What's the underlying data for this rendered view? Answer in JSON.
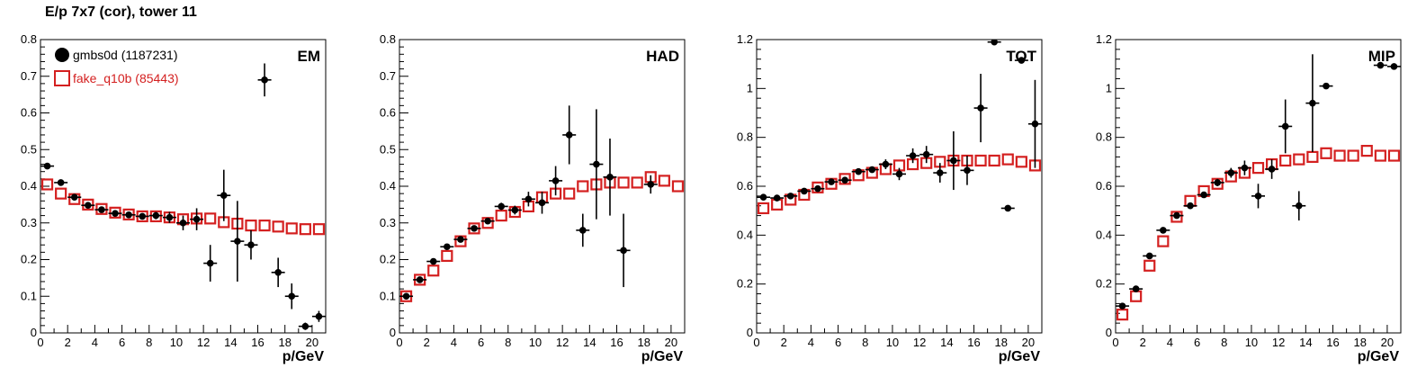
{
  "figure": {
    "title": "E/p 7x7 (cor), tower 11"
  },
  "chart_data": [
    {
      "type": "scatter",
      "panel_label": "EM",
      "xlabel": "p/GeV",
      "ylabel": "",
      "xlim": [
        0,
        21
      ],
      "ylim": [
        0,
        0.8
      ],
      "x_ticks": [
        0,
        2,
        4,
        6,
        8,
        10,
        12,
        14,
        16,
        18,
        20
      ],
      "y_ticks": [
        0,
        0.1,
        0.2,
        0.3,
        0.4,
        0.5,
        0.6,
        0.7,
        0.8
      ],
      "y_tick_labels": [
        "0",
        "0.1",
        "0.2",
        "0.3",
        "0.4",
        "0.5",
        "0.6",
        "0.7",
        "0.8"
      ],
      "legend": {
        "placement": "top-left",
        "entries": [
          {
            "label": "gmbs0d (1187231)",
            "series": 0,
            "color": "#000000"
          },
          {
            "label": "fake_q10b (85443)",
            "series": 1,
            "color": "#d42020"
          }
        ]
      },
      "series": [
        {
          "name": "gmbs0d (1187231)",
          "marker": "filled-circle",
          "color": "#000000",
          "points": [
            {
              "x": 0.5,
              "y": 0.455,
              "err": 0.005
            },
            {
              "x": 1.5,
              "y": 0.41,
              "err": 0.005
            },
            {
              "x": 2.5,
              "y": 0.37,
              "err": 0.005
            },
            {
              "x": 3.5,
              "y": 0.348,
              "err": 0.005
            },
            {
              "x": 4.5,
              "y": 0.336,
              "err": 0.005
            },
            {
              "x": 5.5,
              "y": 0.326,
              "err": 0.006
            },
            {
              "x": 6.5,
              "y": 0.322,
              "err": 0.007
            },
            {
              "x": 7.5,
              "y": 0.318,
              "err": 0.008
            },
            {
              "x": 8.5,
              "y": 0.32,
              "err": 0.01
            },
            {
              "x": 9.5,
              "y": 0.315,
              "err": 0.015
            },
            {
              "x": 10.5,
              "y": 0.3,
              "err": 0.02
            },
            {
              "x": 11.5,
              "y": 0.31,
              "err": 0.03
            },
            {
              "x": 12.5,
              "y": 0.19,
              "err": 0.05
            },
            {
              "x": 13.5,
              "y": 0.375,
              "err": 0.07
            },
            {
              "x": 14.5,
              "y": 0.25,
              "err": 0.11
            },
            {
              "x": 15.5,
              "y": 0.24,
              "err": 0.04
            },
            {
              "x": 16.5,
              "y": 0.69,
              "err": 0.045
            },
            {
              "x": 17.5,
              "y": 0.165,
              "err": 0.04
            },
            {
              "x": 18.5,
              "y": 0.1,
              "err": 0.035
            },
            {
              "x": 19.5,
              "y": 0.018,
              "err": 0.01
            },
            {
              "x": 20.5,
              "y": 0.045,
              "err": 0.015
            }
          ]
        },
        {
          "name": "fake_q10b (85443)",
          "marker": "open-square",
          "color": "#d42020",
          "points": [
            {
              "x": 0.5,
              "y": 0.405
            },
            {
              "x": 1.5,
              "y": 0.38
            },
            {
              "x": 2.5,
              "y": 0.365
            },
            {
              "x": 3.5,
              "y": 0.35
            },
            {
              "x": 4.5,
              "y": 0.338
            },
            {
              "x": 5.5,
              "y": 0.328
            },
            {
              "x": 6.5,
              "y": 0.323
            },
            {
              "x": 7.5,
              "y": 0.318
            },
            {
              "x": 8.5,
              "y": 0.318
            },
            {
              "x": 9.5,
              "y": 0.315
            },
            {
              "x": 10.5,
              "y": 0.31
            },
            {
              "x": 11.5,
              "y": 0.312
            },
            {
              "x": 12.5,
              "y": 0.312
            },
            {
              "x": 13.5,
              "y": 0.302
            },
            {
              "x": 14.5,
              "y": 0.298
            },
            {
              "x": 15.5,
              "y": 0.293
            },
            {
              "x": 16.5,
              "y": 0.293
            },
            {
              "x": 17.5,
              "y": 0.29
            },
            {
              "x": 18.5,
              "y": 0.285
            },
            {
              "x": 19.5,
              "y": 0.283
            },
            {
              "x": 20.5,
              "y": 0.283
            }
          ]
        }
      ]
    },
    {
      "type": "scatter",
      "panel_label": "HAD",
      "xlabel": "p/GeV",
      "ylabel": "",
      "xlim": [
        0,
        21
      ],
      "ylim": [
        0,
        0.8
      ],
      "x_ticks": [
        0,
        2,
        4,
        6,
        8,
        10,
        12,
        14,
        16,
        18,
        20
      ],
      "y_ticks": [
        0,
        0.1,
        0.2,
        0.3,
        0.4,
        0.5,
        0.6,
        0.7,
        0.8
      ],
      "y_tick_labels": [
        "0",
        "0.1",
        "0.2",
        "0.3",
        "0.4",
        "0.5",
        "0.6",
        "0.7",
        "0.8"
      ],
      "series": [
        {
          "name": "gmbs0d (1187231)",
          "marker": "filled-circle",
          "color": "#000000",
          "points": [
            {
              "x": 0.5,
              "y": 0.1,
              "err": 0.005
            },
            {
              "x": 1.5,
              "y": 0.145,
              "err": 0.005
            },
            {
              "x": 2.5,
              "y": 0.195,
              "err": 0.005
            },
            {
              "x": 3.5,
              "y": 0.235,
              "err": 0.005
            },
            {
              "x": 4.5,
              "y": 0.255,
              "err": 0.005
            },
            {
              "x": 5.5,
              "y": 0.285,
              "err": 0.006
            },
            {
              "x": 6.5,
              "y": 0.305,
              "err": 0.008
            },
            {
              "x": 7.5,
              "y": 0.345,
              "err": 0.01
            },
            {
              "x": 8.5,
              "y": 0.335,
              "err": 0.012
            },
            {
              "x": 9.5,
              "y": 0.365,
              "err": 0.02
            },
            {
              "x": 10.5,
              "y": 0.355,
              "err": 0.03
            },
            {
              "x": 11.5,
              "y": 0.415,
              "err": 0.04
            },
            {
              "x": 12.5,
              "y": 0.54,
              "err": 0.08
            },
            {
              "x": 13.5,
              "y": 0.28,
              "err": 0.045
            },
            {
              "x": 14.5,
              "y": 0.46,
              "err": 0.15
            },
            {
              "x": 15.5,
              "y": 0.425,
              "err": 0.105
            },
            {
              "x": 16.5,
              "y": 0.225,
              "err": 0.1
            },
            {
              "x": 18.5,
              "y": 0.405,
              "err": 0.025
            }
          ]
        },
        {
          "name": "fake_q10b (85443)",
          "marker": "open-square",
          "color": "#d42020",
          "points": [
            {
              "x": 0.5,
              "y": 0.1
            },
            {
              "x": 1.5,
              "y": 0.145
            },
            {
              "x": 2.5,
              "y": 0.17
            },
            {
              "x": 3.5,
              "y": 0.21
            },
            {
              "x": 4.5,
              "y": 0.25
            },
            {
              "x": 5.5,
              "y": 0.285
            },
            {
              "x": 6.5,
              "y": 0.3
            },
            {
              "x": 7.5,
              "y": 0.32
            },
            {
              "x": 8.5,
              "y": 0.33
            },
            {
              "x": 9.5,
              "y": 0.345
            },
            {
              "x": 10.5,
              "y": 0.37
            },
            {
              "x": 11.5,
              "y": 0.38
            },
            {
              "x": 12.5,
              "y": 0.38
            },
            {
              "x": 13.5,
              "y": 0.4
            },
            {
              "x": 14.5,
              "y": 0.405
            },
            {
              "x": 15.5,
              "y": 0.41
            },
            {
              "x": 16.5,
              "y": 0.41
            },
            {
              "x": 17.5,
              "y": 0.41
            },
            {
              "x": 18.5,
              "y": 0.425
            },
            {
              "x": 19.5,
              "y": 0.415
            },
            {
              "x": 20.5,
              "y": 0.4
            }
          ]
        }
      ]
    },
    {
      "type": "scatter",
      "panel_label": "TOT",
      "xlabel": "p/GeV",
      "ylabel": "",
      "xlim": [
        0,
        21
      ],
      "ylim": [
        0,
        1.2
      ],
      "x_ticks": [
        0,
        2,
        4,
        6,
        8,
        10,
        12,
        14,
        16,
        18,
        20
      ],
      "y_ticks": [
        0,
        0.2,
        0.4,
        0.6,
        0.8,
        1,
        1.2
      ],
      "y_tick_labels": [
        "0",
        "0.2",
        "0.4",
        "0.6",
        "0.8",
        "1",
        "1.2"
      ],
      "series": [
        {
          "name": "gmbs0d (1187231)",
          "marker": "filled-circle",
          "color": "#000000",
          "points": [
            {
              "x": 0.5,
              "y": 0.555,
              "err": 0.005
            },
            {
              "x": 1.5,
              "y": 0.552,
              "err": 0.005
            },
            {
              "x": 2.5,
              "y": 0.56,
              "err": 0.005
            },
            {
              "x": 3.5,
              "y": 0.58,
              "err": 0.005
            },
            {
              "x": 4.5,
              "y": 0.59,
              "err": 0.006
            },
            {
              "x": 5.5,
              "y": 0.618,
              "err": 0.007
            },
            {
              "x": 6.5,
              "y": 0.625,
              "err": 0.008
            },
            {
              "x": 7.5,
              "y": 0.66,
              "err": 0.01
            },
            {
              "x": 8.5,
              "y": 0.668,
              "err": 0.012
            },
            {
              "x": 9.5,
              "y": 0.69,
              "err": 0.02
            },
            {
              "x": 10.5,
              "y": 0.65,
              "err": 0.025
            },
            {
              "x": 11.5,
              "y": 0.725,
              "err": 0.03
            },
            {
              "x": 12.5,
              "y": 0.73,
              "err": 0.035
            },
            {
              "x": 13.5,
              "y": 0.655,
              "err": 0.04
            },
            {
              "x": 14.5,
              "y": 0.705,
              "err": 0.12
            },
            {
              "x": 15.5,
              "y": 0.665,
              "err": 0.06
            },
            {
              "x": 16.5,
              "y": 0.92,
              "err": 0.14
            },
            {
              "x": 17.5,
              "y": 1.19,
              "err": 0.01
            },
            {
              "x": 18.5,
              "y": 0.51,
              "err": 0.01
            },
            {
              "x": 19.5,
              "y": 1.115,
              "err": 0.01
            },
            {
              "x": 20.5,
              "y": 0.855,
              "err": 0.18
            }
          ]
        },
        {
          "name": "fake_q10b (85443)",
          "marker": "open-square",
          "color": "#d42020",
          "points": [
            {
              "x": 0.5,
              "y": 0.51
            },
            {
              "x": 1.5,
              "y": 0.525
            },
            {
              "x": 2.5,
              "y": 0.545
            },
            {
              "x": 3.5,
              "y": 0.565
            },
            {
              "x": 4.5,
              "y": 0.595
            },
            {
              "x": 5.5,
              "y": 0.61
            },
            {
              "x": 6.5,
              "y": 0.63
            },
            {
              "x": 7.5,
              "y": 0.645
            },
            {
              "x": 8.5,
              "y": 0.655
            },
            {
              "x": 9.5,
              "y": 0.67
            },
            {
              "x": 10.5,
              "y": 0.685
            },
            {
              "x": 11.5,
              "y": 0.69
            },
            {
              "x": 12.5,
              "y": 0.695
            },
            {
              "x": 13.5,
              "y": 0.7
            },
            {
              "x": 14.5,
              "y": 0.705
            },
            {
              "x": 15.5,
              "y": 0.705
            },
            {
              "x": 16.5,
              "y": 0.705
            },
            {
              "x": 17.5,
              "y": 0.705
            },
            {
              "x": 18.5,
              "y": 0.71
            },
            {
              "x": 19.5,
              "y": 0.7
            },
            {
              "x": 20.5,
              "y": 0.685
            }
          ]
        }
      ]
    },
    {
      "type": "scatter",
      "panel_label": "MIP",
      "xlabel": "p/GeV",
      "ylabel": "",
      "xlim": [
        0,
        21
      ],
      "ylim": [
        0,
        1.2
      ],
      "x_ticks": [
        0,
        2,
        4,
        6,
        8,
        10,
        12,
        14,
        16,
        18,
        20
      ],
      "y_ticks": [
        0,
        0.2,
        0.4,
        0.6,
        0.8,
        1,
        1.2
      ],
      "y_tick_labels": [
        "0",
        "0.2",
        "0.4",
        "0.6",
        "0.8",
        "1",
        "1.2"
      ],
      "series": [
        {
          "name": "gmbs0d (1187231)",
          "marker": "filled-circle",
          "color": "#000000",
          "points": [
            {
              "x": 0.5,
              "y": 0.11,
              "err": 0.005
            },
            {
              "x": 1.5,
              "y": 0.18,
              "err": 0.005
            },
            {
              "x": 2.5,
              "y": 0.315,
              "err": 0.005
            },
            {
              "x": 3.5,
              "y": 0.42,
              "err": 0.006
            },
            {
              "x": 4.5,
              "y": 0.48,
              "err": 0.008
            },
            {
              "x": 5.5,
              "y": 0.52,
              "err": 0.01
            },
            {
              "x": 6.5,
              "y": 0.565,
              "err": 0.012
            },
            {
              "x": 7.5,
              "y": 0.615,
              "err": 0.015
            },
            {
              "x": 8.5,
              "y": 0.655,
              "err": 0.02
            },
            {
              "x": 9.5,
              "y": 0.675,
              "err": 0.03
            },
            {
              "x": 10.5,
              "y": 0.56,
              "err": 0.05
            },
            {
              "x": 11.5,
              "y": 0.67,
              "err": 0.04
            },
            {
              "x": 12.5,
              "y": 0.845,
              "err": 0.11
            },
            {
              "x": 13.5,
              "y": 0.52,
              "err": 0.06
            },
            {
              "x": 14.5,
              "y": 0.94,
              "err": 0.2
            },
            {
              "x": 15.5,
              "y": 1.01,
              "err": 0.008
            },
            {
              "x": 19.5,
              "y": 1.095,
              "err": 0.008
            },
            {
              "x": 20.5,
              "y": 1.09,
              "err": 0.008
            }
          ]
        },
        {
          "name": "fake_q10b (85443)",
          "marker": "open-square",
          "color": "#d42020",
          "points": [
            {
              "x": 0.5,
              "y": 0.075
            },
            {
              "x": 1.5,
              "y": 0.15
            },
            {
              "x": 2.5,
              "y": 0.275
            },
            {
              "x": 3.5,
              "y": 0.375
            },
            {
              "x": 4.5,
              "y": 0.475
            },
            {
              "x": 5.5,
              "y": 0.54
            },
            {
              "x": 6.5,
              "y": 0.58
            },
            {
              "x": 7.5,
              "y": 0.61
            },
            {
              "x": 8.5,
              "y": 0.64
            },
            {
              "x": 9.5,
              "y": 0.655
            },
            {
              "x": 10.5,
              "y": 0.675
            },
            {
              "x": 11.5,
              "y": 0.69
            },
            {
              "x": 12.5,
              "y": 0.705
            },
            {
              "x": 13.5,
              "y": 0.71
            },
            {
              "x": 14.5,
              "y": 0.72
            },
            {
              "x": 15.5,
              "y": 0.735
            },
            {
              "x": 16.5,
              "y": 0.725
            },
            {
              "x": 17.5,
              "y": 0.725
            },
            {
              "x": 18.5,
              "y": 0.745
            },
            {
              "x": 19.5,
              "y": 0.725
            },
            {
              "x": 20.5,
              "y": 0.725
            }
          ]
        }
      ]
    }
  ]
}
